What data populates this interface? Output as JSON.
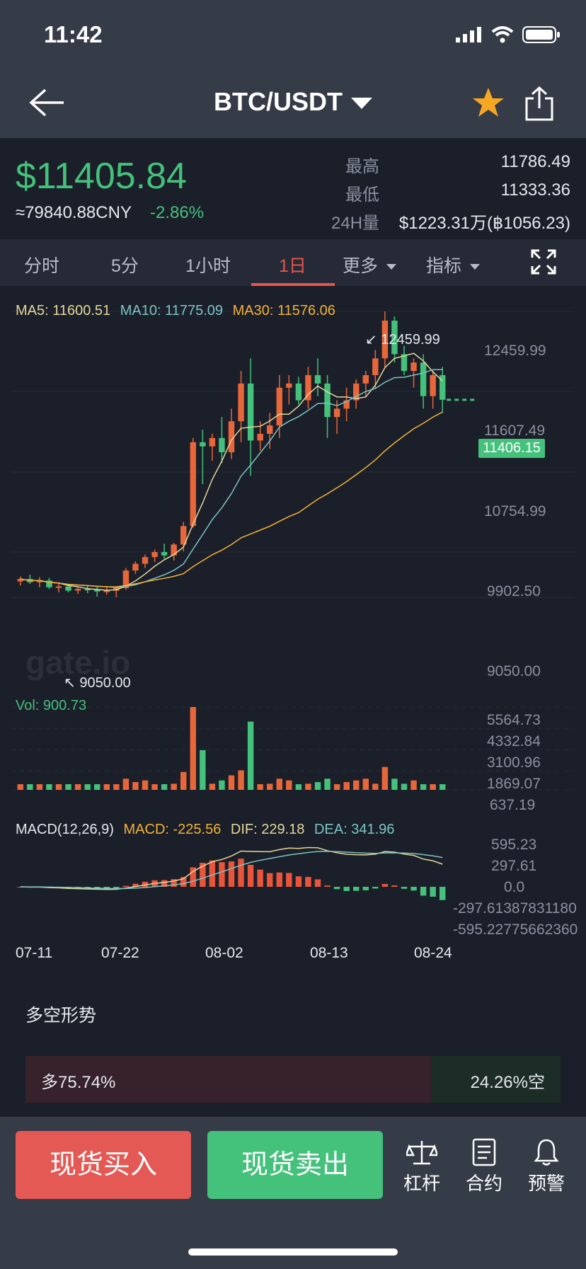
{
  "status": {
    "time": "11:42"
  },
  "header": {
    "pair": "BTC/USDT"
  },
  "price": {
    "last": "$11405.84",
    "cny": "≈79840.88CNY",
    "change": "-2.86%",
    "high_label": "最高",
    "high": "11786.49",
    "low_label": "最低",
    "low": "11333.36",
    "vol_label": "24H量",
    "vol": "$1223.31万(฿1056.23)"
  },
  "tabs": [
    {
      "label": "分时"
    },
    {
      "label": "5分"
    },
    {
      "label": "1小时"
    },
    {
      "label": "1日"
    },
    {
      "label": "更多"
    },
    {
      "label": "指标"
    }
  ],
  "active_tab": "1日",
  "chart": {
    "ma5_label": "MA5: 11600.51",
    "ma10_label": "MA10: 11775.09",
    "ma30_label": "MA30: 11576.06",
    "vol_label": "Vol: 900.73",
    "macd_title": "MACD(12,26,9)",
    "macd_label": "MACD: -225.56",
    "dif_label": "DIF: 229.18",
    "dea_label": "DEA: 341.96",
    "high_callout": "12459.99",
    "low_callout": "9050.00",
    "current_tag": "11406.15",
    "watermark": "gate.io",
    "price_axis": [
      "12459.99",
      "11607.49",
      "10754.99",
      "9902.50",
      "9050.00"
    ],
    "vol_axis": [
      "5564.73",
      "4332.84",
      "3100.96",
      "1869.07",
      "637.19"
    ],
    "macd_axis": [
      "595.23",
      "297.61",
      "0.0",
      "-297.61387831180",
      "-595.22775662360"
    ],
    "x_axis": [
      "07-11",
      "07-22",
      "08-02",
      "08-13",
      "08-24"
    ]
  },
  "chart_data": {
    "type": "candlestick",
    "title": "BTC/USDT 1日",
    "y_range": [
      9050.0,
      12459.99
    ],
    "x": [
      "07-11",
      "07-12",
      "07-13",
      "07-14",
      "07-15",
      "07-16",
      "07-17",
      "07-18",
      "07-19",
      "07-20",
      "07-21",
      "07-22",
      "07-23",
      "07-24",
      "07-25",
      "07-26",
      "07-27",
      "07-28",
      "07-29",
      "07-30",
      "07-31",
      "08-01",
      "08-02",
      "08-03",
      "08-04",
      "08-05",
      "08-06",
      "08-07",
      "08-08",
      "08-09",
      "08-10",
      "08-11",
      "08-12",
      "08-13",
      "08-14",
      "08-15",
      "08-16",
      "08-17",
      "08-18",
      "08-19",
      "08-20",
      "08-21",
      "08-22",
      "08-23",
      "08-24"
    ],
    "ohlc": [
      [
        9240,
        9300,
        9190,
        9270
      ],
      [
        9270,
        9320,
        9210,
        9230
      ],
      [
        9230,
        9290,
        9170,
        9250
      ],
      [
        9250,
        9280,
        9150,
        9170
      ],
      [
        9170,
        9230,
        9110,
        9180
      ],
      [
        9180,
        9210,
        9110,
        9130
      ],
      [
        9130,
        9170,
        9090,
        9150
      ],
      [
        9150,
        9190,
        9100,
        9140
      ],
      [
        9140,
        9180,
        9060,
        9120
      ],
      [
        9120,
        9170,
        9080,
        9130
      ],
      [
        9130,
        9180,
        9050,
        9160
      ],
      [
        9160,
        9400,
        9140,
        9370
      ],
      [
        9370,
        9480,
        9330,
        9450
      ],
      [
        9450,
        9560,
        9400,
        9530
      ],
      [
        9530,
        9620,
        9470,
        9590
      ],
      [
        9590,
        9690,
        9510,
        9550
      ],
      [
        9550,
        9700,
        9490,
        9680
      ],
      [
        9680,
        9950,
        9600,
        9900
      ],
      [
        9900,
        10950,
        9880,
        10900
      ],
      [
        10900,
        11050,
        10400,
        10850
      ],
      [
        10850,
        11000,
        10680,
        10950
      ],
      [
        10950,
        11200,
        10650,
        10780
      ],
      [
        10780,
        11300,
        10700,
        11150
      ],
      [
        11150,
        11750,
        10900,
        11600
      ],
      [
        11600,
        11900,
        10500,
        10920
      ],
      [
        10920,
        11150,
        10800,
        11000
      ],
      [
        11000,
        11250,
        10820,
        11100
      ],
      [
        11100,
        11700,
        10950,
        11550
      ],
      [
        11550,
        11700,
        11350,
        11600
      ],
      [
        11600,
        11680,
        11350,
        11400
      ],
      [
        11400,
        11800,
        11300,
        11700
      ],
      [
        11700,
        11900,
        11450,
        11600
      ],
      [
        11600,
        11700,
        10950,
        11200
      ],
      [
        11200,
        11400,
        11000,
        11300
      ],
      [
        11300,
        11550,
        11150,
        11400
      ],
      [
        11400,
        11650,
        11300,
        11600
      ],
      [
        11600,
        11750,
        11450,
        11700
      ],
      [
        11700,
        12000,
        11550,
        11900
      ],
      [
        11900,
        12459.99,
        11800,
        12350
      ],
      [
        12350,
        12400,
        11850,
        11950
      ],
      [
        11950,
        12050,
        11700,
        11750
      ],
      [
        11750,
        11900,
        11550,
        11850
      ],
      [
        11850,
        11950,
        11300,
        11450
      ],
      [
        11450,
        11750,
        11300,
        11700
      ],
      [
        11700,
        11800,
        11250,
        11406.15
      ]
    ],
    "volume": [
      700,
      900,
      700,
      600,
      700,
      500,
      400,
      500,
      600,
      700,
      800,
      1300,
      1100,
      1200,
      900,
      800,
      1000,
      1700,
      5564.73,
      3000,
      1000,
      1200,
      1500,
      1800,
      4700,
      900,
      1000,
      1300,
      1200,
      900,
      1000,
      1100,
      1300,
      900,
      1100,
      1200,
      1300,
      1000,
      2000,
      1300,
      1000,
      1200,
      900,
      700,
      700
    ],
    "volume_axis_range": [
      637.19,
      5564.73
    ],
    "macd_range": [
      -595.2277566236,
      595.23
    ]
  },
  "trend": {
    "title": "多空形势",
    "long": "多75.74%",
    "short": "24.26%空",
    "long_fraction": 0.7574
  },
  "actions": {
    "buy": "现货买入",
    "sell": "现货卖出",
    "leverage": "杠杆",
    "contract": "合约",
    "alert": "预警"
  },
  "colors": {
    "up": "#e8673a",
    "down": "#44c17b",
    "ma5": "#e4d79a",
    "ma10": "#7cc4c4",
    "ma30": "#f2b237"
  }
}
